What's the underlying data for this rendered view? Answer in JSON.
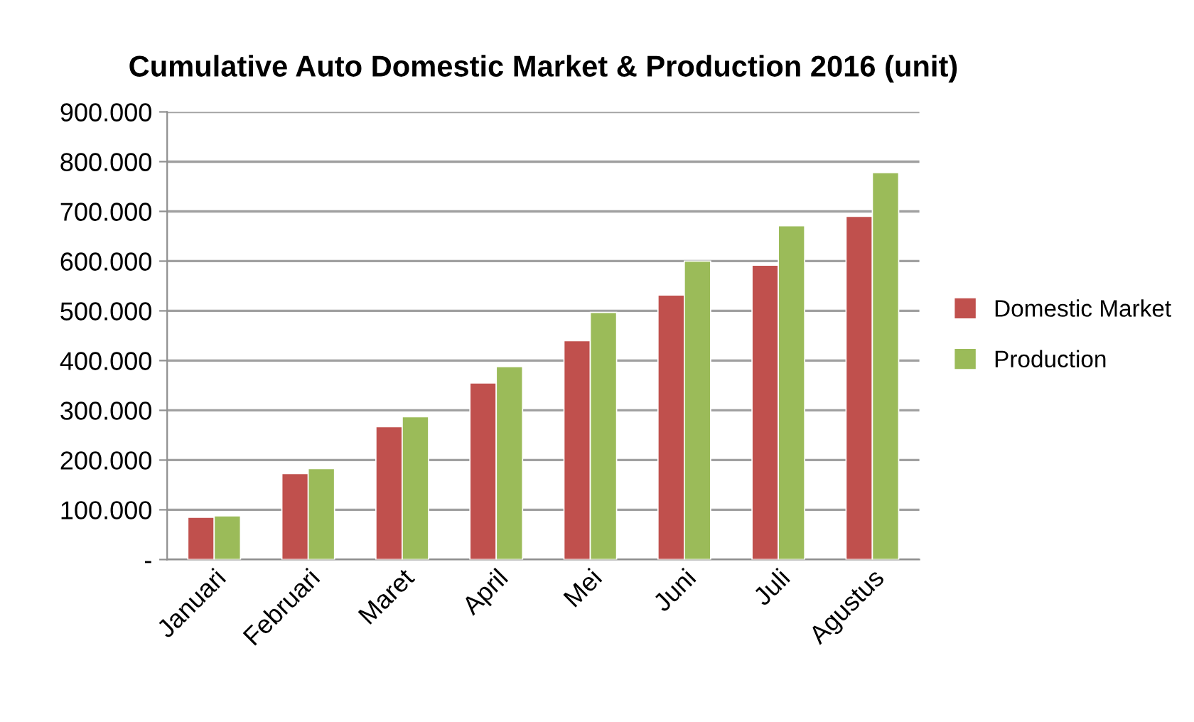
{
  "chart_data": {
    "type": "bar",
    "title": "Cumulative Auto Domestic Market & Production 2016 (unit)",
    "categories": [
      "Januari",
      "Februari",
      "Maret",
      "April",
      "Mei",
      "Juni",
      "Juli",
      "Agustus"
    ],
    "series": [
      {
        "name": "Domestic Market",
        "color": "#c0504d",
        "values": [
          85000,
          173000,
          267000,
          355000,
          440000,
          532000,
          592000,
          690000
        ]
      },
      {
        "name": "Production",
        "color": "#9bbb59",
        "values": [
          88000,
          183000,
          287000,
          388000,
          497000,
          600000,
          671000,
          778000
        ]
      }
    ],
    "ylim": [
      0,
      900000
    ],
    "yticks": [
      {
        "value": 0,
        "label": "-"
      },
      {
        "value": 100000,
        "label": "100.000"
      },
      {
        "value": 200000,
        "label": "200.000"
      },
      {
        "value": 300000,
        "label": "300.000"
      },
      {
        "value": 400000,
        "label": "400.000"
      },
      {
        "value": 500000,
        "label": "500.000"
      },
      {
        "value": 600000,
        "label": "600.000"
      },
      {
        "value": 700000,
        "label": "700.000"
      },
      {
        "value": 800000,
        "label": "800.000"
      },
      {
        "value": 900000,
        "label": "900.000"
      }
    ],
    "grid": "y",
    "legend": "right"
  }
}
